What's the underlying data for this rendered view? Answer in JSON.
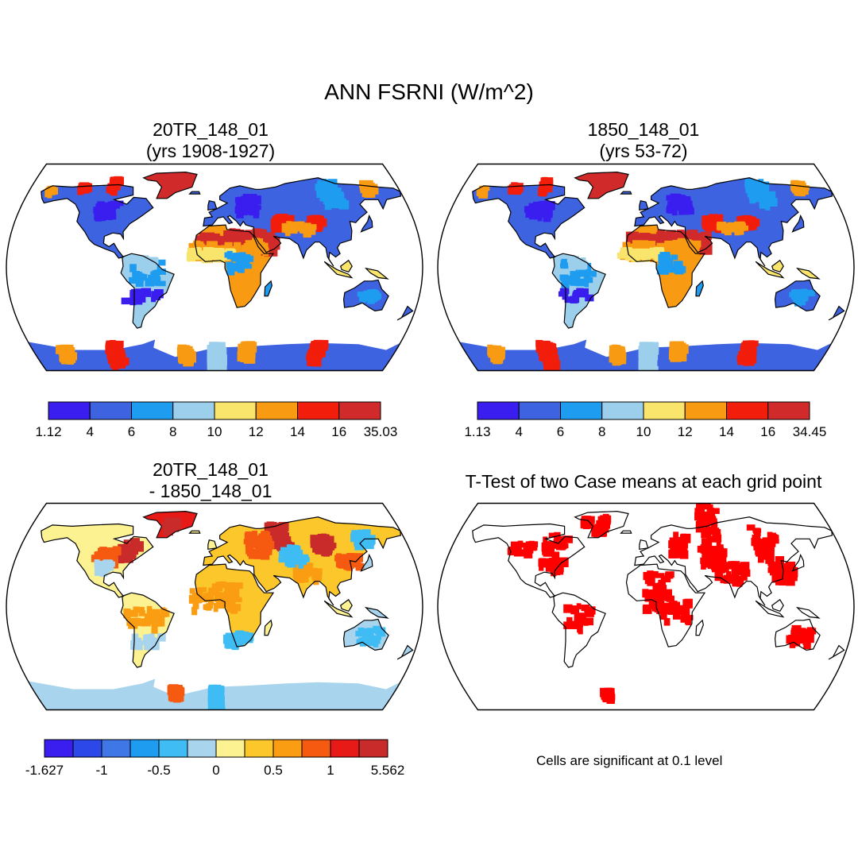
{
  "figure": {
    "title": "ANN FSRNI (W/m^2)"
  },
  "panels": [
    {
      "id": "p1",
      "title_lines": [
        "20TR_148_01",
        "(yrs 1908-1927)"
      ],
      "colorbar": {
        "colors": [
          "#3a1ef0",
          "#3e63e0",
          "#1e9cf0",
          "#9ccfec",
          "#f9e46c",
          "#f99b12",
          "#f21d0a",
          "#d12a2a"
        ],
        "labels": [
          "1.12",
          "4",
          "6",
          "8",
          "10",
          "12",
          "14",
          "16",
          "35.03"
        ]
      }
    },
    {
      "id": "p2",
      "title_lines": [
        "1850_148_01",
        "(yrs 53-72)"
      ],
      "colorbar": {
        "colors": [
          "#3a1ef0",
          "#3e63e0",
          "#1e9cf0",
          "#9ccfec",
          "#f9e46c",
          "#f99b12",
          "#f21d0a",
          "#d12a2a"
        ],
        "labels": [
          "1.13",
          "4",
          "6",
          "8",
          "10",
          "12",
          "14",
          "16",
          "34.45"
        ]
      }
    },
    {
      "id": "p3",
      "title_lines": [
        "20TR_148_01",
        "- 1850_148_01"
      ],
      "colorbar": {
        "colors": [
          "#3a1ef0",
          "#2c48e8",
          "#3f78e6",
          "#1e9cf0",
          "#3fbcf4",
          "#a8d4ee",
          "#fdf291",
          "#fbc72a",
          "#fb9d12",
          "#f55a10",
          "#e81a18",
          "#c92a2a"
        ],
        "labels": [
          "-1.627",
          "",
          "-1",
          "",
          "-0.5",
          "",
          "0",
          "",
          "0.5",
          "",
          "1",
          "",
          "5.562"
        ]
      }
    },
    {
      "id": "p4",
      "title_lines": [
        "T-Test of two Case means at each grid point"
      ],
      "note": "Cells are significant at 0.1 level"
    }
  ]
}
